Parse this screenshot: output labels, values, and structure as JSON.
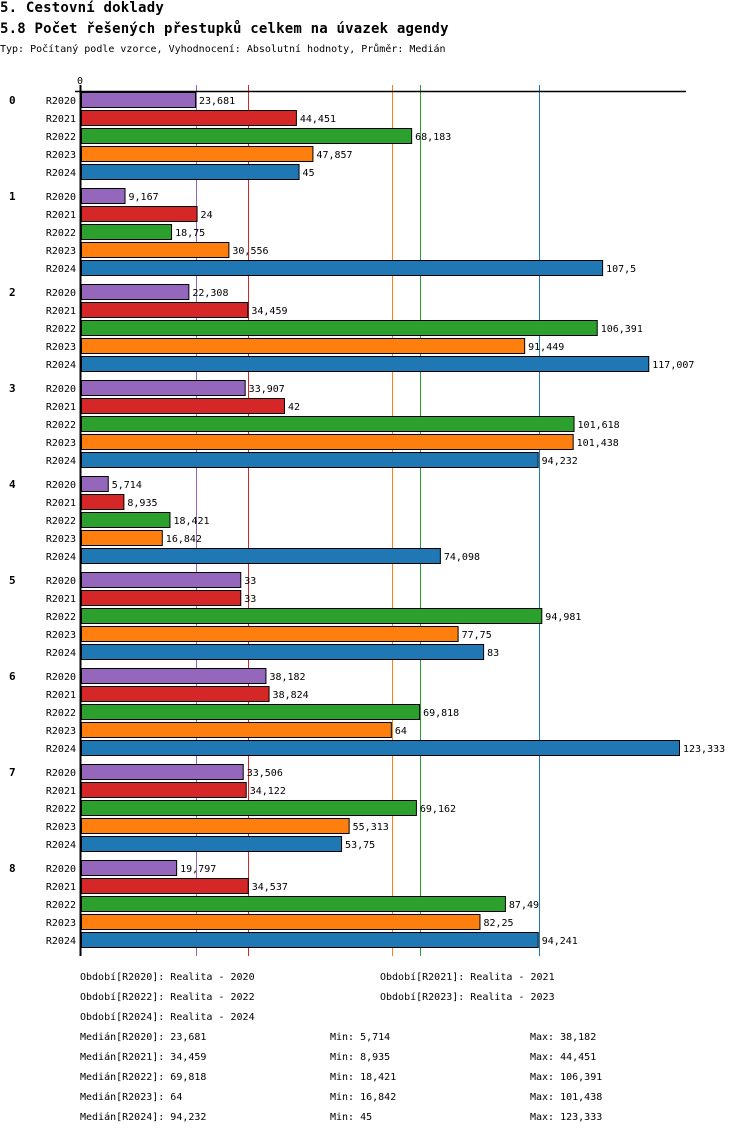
{
  "header": {
    "section_title": "5. Cestovní doklady",
    "chart_title": "5.8 Počet řešených přestupků celkem na úvazek agendy",
    "subtitle": "Typ: Počítaný podle vzorce, Vyhodnocení: Absolutní hodnoty, Průměr: Medián"
  },
  "chart_data": {
    "type": "bar",
    "orientation": "horizontal",
    "title": "5.8 Počet řešených přestupků celkem na úvazek agendy",
    "xlabel": "",
    "ylabel": "",
    "x_tick_labels": [
      "0"
    ],
    "xlim": [
      0,
      127
    ],
    "grid": false,
    "categories": [
      "0",
      "1",
      "2",
      "3",
      "4",
      "5",
      "6",
      "7",
      "8"
    ],
    "series": [
      {
        "name": "R2020",
        "color": "#9467bd",
        "values": [
          23.681,
          9.167,
          22.308,
          33.907,
          5.714,
          33,
          38.182,
          33.506,
          19.797
        ],
        "labels": [
          "23,681",
          "9,167",
          "22,308",
          "33,907",
          "5,714",
          "33",
          "38,182",
          "33,506",
          "19,797"
        ]
      },
      {
        "name": "R2021",
        "color": "#d62728",
        "values": [
          44.451,
          24,
          34.459,
          42,
          8.935,
          33,
          38.824,
          34.122,
          34.537
        ],
        "labels": [
          "44,451",
          "24",
          "34,459",
          "42",
          "8,935",
          "33",
          "38,824",
          "34,122",
          "34,537"
        ]
      },
      {
        "name": "R2022",
        "color": "#2ca02c",
        "values": [
          68.183,
          18.75,
          106.391,
          101.618,
          18.421,
          94.981,
          69.818,
          69.162,
          87.49
        ],
        "labels": [
          "68,183",
          "18,75",
          "106,391",
          "101,618",
          "18,421",
          "94,981",
          "69,818",
          "69,162",
          "87,49"
        ]
      },
      {
        "name": "R2023",
        "color": "#ff7f0e",
        "values": [
          47.857,
          30.556,
          91.449,
          101.438,
          16.842,
          77.75,
          64,
          55.313,
          82.25
        ],
        "labels": [
          "47,857",
          "30,556",
          "91,449",
          "101,438",
          "16,842",
          "77,75",
          "64",
          "55,313",
          "82,25"
        ]
      },
      {
        "name": "R2024",
        "color": "#1f77b4",
        "values": [
          45,
          107.5,
          117.007,
          94.232,
          74.098,
          83,
          123.333,
          53.75,
          94.241
        ],
        "labels": [
          "45",
          "107,5",
          "117,007",
          "94,232",
          "74,098",
          "83",
          "123,333",
          "53,75",
          "94,241"
        ]
      }
    ],
    "median_lines": [
      {
        "series": "R2020",
        "value": 23.681,
        "color": "#9467bd"
      },
      {
        "series": "R2021",
        "value": 34.459,
        "color": "#d62728"
      },
      {
        "series": "R2022",
        "value": 69.818,
        "color": "#2ca02c"
      },
      {
        "series": "R2023",
        "value": 64,
        "color": "#ff7f0e"
      },
      {
        "series": "R2024",
        "value": 94.232,
        "color": "#1f77b4"
      }
    ]
  },
  "legend": {
    "periods": [
      "Období[R2020]: Realita - 2020",
      "Období[R2021]: Realita - 2021",
      "Období[R2022]: Realita - 2022",
      "Období[R2023]: Realita - 2023",
      "Období[R2024]: Realita - 2024"
    ],
    "stats": [
      {
        "median": "Medián[R2020]: 23,681",
        "min": "Min: 5,714",
        "max": "Max: 38,182"
      },
      {
        "median": "Medián[R2021]: 34,459",
        "min": "Min: 8,935",
        "max": "Max: 44,451"
      },
      {
        "median": "Medián[R2022]: 69,818",
        "min": "Min: 18,421",
        "max": "Max: 106,391"
      },
      {
        "median": "Medián[R2023]: 64",
        "min": "Min: 16,842",
        "max": "Max: 101,438"
      },
      {
        "median": "Medián[R2024]: 94,232",
        "min": "Min: 45",
        "max": "Max: 123,333"
      }
    ]
  }
}
